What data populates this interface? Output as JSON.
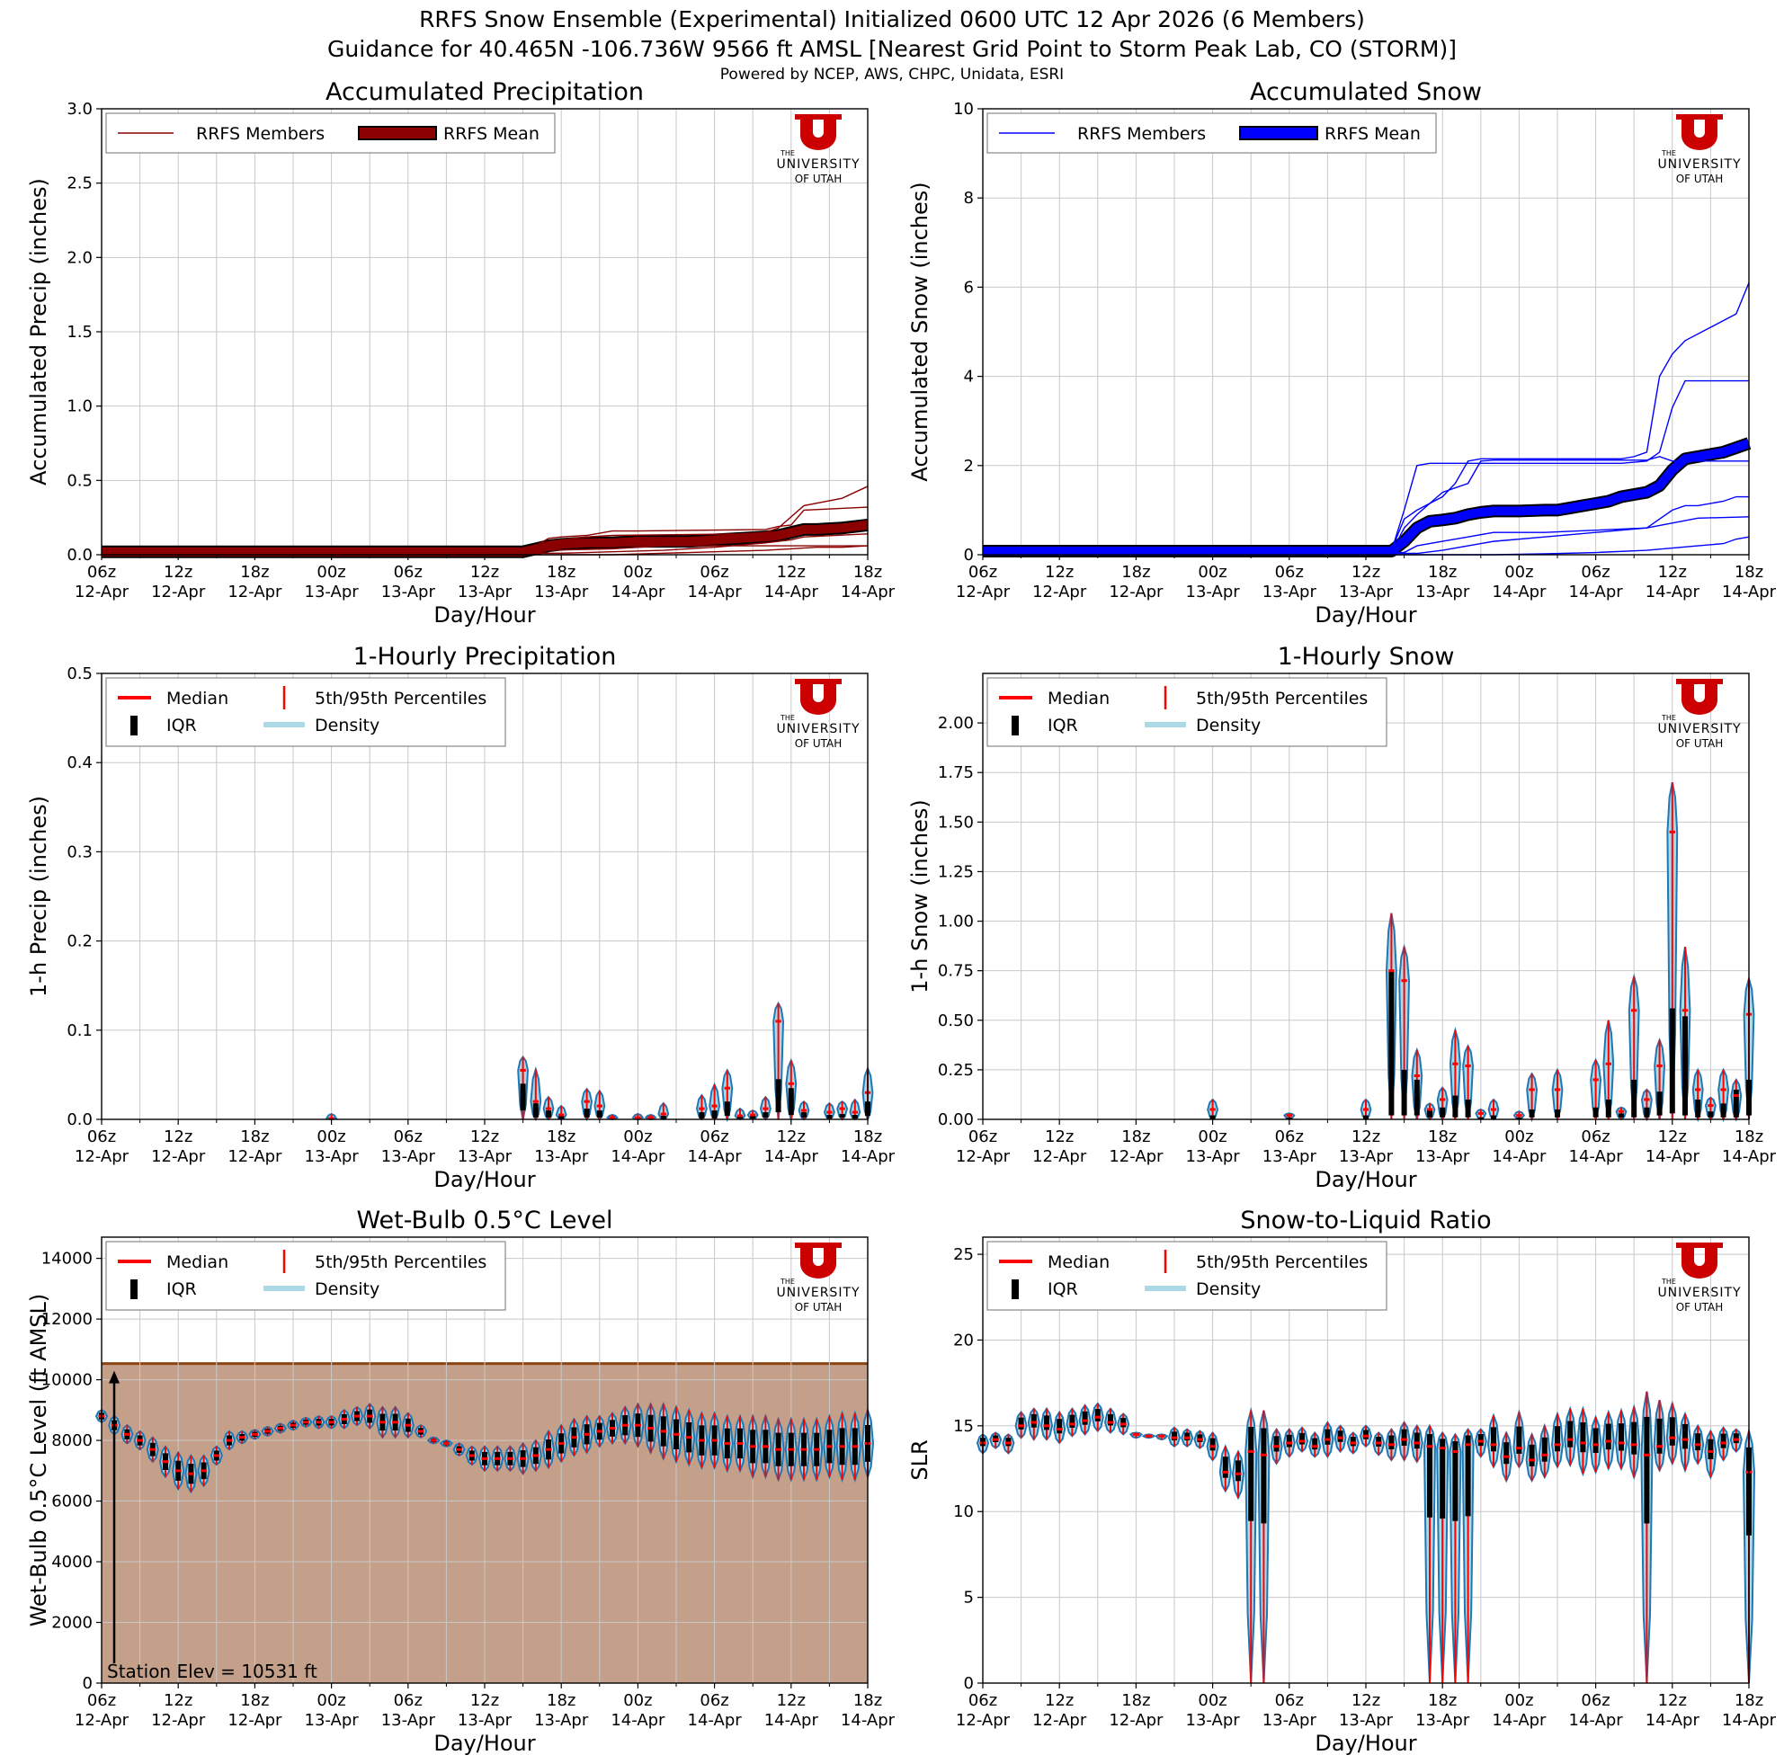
{
  "header": {
    "title1": "RRFS Snow Ensemble (Experimental) Initialized 0600 UTC 12 Apr 2026 (6 Members)",
    "title2": "Guidance for 40.465N -106.736W 9566 ft AMSL [Nearest Grid Point to Storm Peak Lab, CO (STORM)]",
    "subtitle": "Powered by NCEP, AWS, CHPC, Unidata, ESRI"
  },
  "logo": {
    "line1": "THE",
    "line2": "UNIVERSITY",
    "line3": "OF UTAH"
  },
  "colors": {
    "precip": "#8b0000",
    "snow": "#0000ff",
    "median": "#ff0000",
    "density_fill": "#add8e6",
    "density_edge": "#1f77b4",
    "terrain": "#c4a08a",
    "terrain_edge": "#8b4513",
    "grid": "#c8c8c8"
  },
  "x_axis": {
    "hours_total": 60,
    "label": "Day/Hour",
    "ticks": [
      {
        "h": 0,
        "hour": "06z",
        "day": "12-Apr"
      },
      {
        "h": 6,
        "hour": "12z",
        "day": "12-Apr"
      },
      {
        "h": 12,
        "hour": "18z",
        "day": "12-Apr"
      },
      {
        "h": 18,
        "hour": "00z",
        "day": "13-Apr"
      },
      {
        "h": 24,
        "hour": "06z",
        "day": "13-Apr"
      },
      {
        "h": 30,
        "hour": "12z",
        "day": "13-Apr"
      },
      {
        "h": 36,
        "hour": "18z",
        "day": "13-Apr"
      },
      {
        "h": 42,
        "hour": "00z",
        "day": "14-Apr"
      },
      {
        "h": 48,
        "hour": "06z",
        "day": "14-Apr"
      },
      {
        "h": 54,
        "hour": "12z",
        "day": "14-Apr"
      },
      {
        "h": 60,
        "hour": "18z",
        "day": "14-Apr"
      }
    ]
  },
  "chart_data": [
    {
      "id": "acc_precip",
      "type": "line",
      "title": "Accumulated Precipitation",
      "xlabel": "Day/Hour",
      "ylabel": "Accumulated Precip (inches)",
      "ylim": [
        0,
        3.0
      ],
      "yticks": [
        "0.0",
        "0.5",
        "1.0",
        "1.5",
        "2.0",
        "2.5",
        "3.0"
      ],
      "legend": [
        "RRFS Members",
        "RRFS Mean"
      ],
      "members": [
        {
          "x": [
            0,
            32,
            33,
            34,
            60
          ],
          "y": [
            0.02,
            0.02,
            0.03,
            0.06,
            0.06
          ]
        },
        {
          "x": [
            0,
            32,
            34,
            35,
            36,
            38,
            40,
            42,
            52,
            53,
            54,
            55,
            60
          ],
          "y": [
            0.02,
            0.02,
            0.06,
            0.11,
            0.12,
            0.13,
            0.16,
            0.16,
            0.17,
            0.19,
            0.2,
            0.3,
            0.32
          ]
        },
        {
          "x": [
            0,
            33,
            34,
            35,
            38,
            40,
            50,
            52,
            53,
            55,
            58,
            60
          ],
          "y": [
            0.01,
            0.02,
            0.04,
            0.09,
            0.12,
            0.13,
            0.14,
            0.15,
            0.18,
            0.33,
            0.38,
            0.46
          ]
        },
        {
          "x": [
            0,
            34,
            35,
            40,
            44,
            48,
            50,
            53,
            55,
            58,
            60
          ],
          "y": [
            0.01,
            0.01,
            0.03,
            0.04,
            0.06,
            0.08,
            0.1,
            0.12,
            0.15,
            0.2,
            0.23
          ]
        },
        {
          "x": [
            0,
            36,
            40,
            44,
            48,
            52,
            54,
            55,
            60
          ],
          "y": [
            0.01,
            0.01,
            0.02,
            0.03,
            0.05,
            0.08,
            0.1,
            0.12,
            0.14
          ]
        },
        {
          "x": [
            0,
            40,
            44,
            48,
            52,
            54,
            56,
            58,
            60
          ],
          "y": [
            0.0,
            0.0,
            0.01,
            0.02,
            0.03,
            0.04,
            0.05,
            0.05,
            0.06
          ]
        }
      ],
      "mean": {
        "x": [
          0,
          32,
          33,
          34,
          35,
          36,
          38,
          40,
          42,
          44,
          46,
          48,
          50,
          52,
          53,
          54,
          55,
          56,
          58,
          60
        ],
        "y": [
          0.02,
          0.02,
          0.02,
          0.04,
          0.06,
          0.07,
          0.08,
          0.08,
          0.09,
          0.09,
          0.09,
          0.1,
          0.11,
          0.12,
          0.13,
          0.15,
          0.17,
          0.17,
          0.18,
          0.2
        ]
      }
    },
    {
      "id": "acc_snow",
      "type": "line",
      "title": "Accumulated Snow",
      "xlabel": "Day/Hour",
      "ylabel": "Accumulated Snow (inches)",
      "ylim": [
        0,
        10
      ],
      "yticks": [
        "0",
        "2",
        "4",
        "6",
        "8",
        "10"
      ],
      "legend": [
        "RRFS Members",
        "RRFS Mean"
      ],
      "members": [
        {
          "x": [
            0,
            32,
            33,
            34,
            36,
            37,
            38,
            39,
            40,
            50,
            51,
            52,
            53,
            54,
            55,
            57,
            59,
            60
          ],
          "y": [
            0.1,
            0.1,
            0.8,
            1.0,
            1.3,
            1.6,
            2.1,
            2.15,
            2.15,
            2.15,
            2.2,
            2.3,
            4.0,
            4.5,
            4.8,
            5.1,
            5.4,
            6.1
          ]
        },
        {
          "x": [
            0,
            32,
            33,
            34,
            35,
            36,
            50,
            52,
            53,
            54,
            55,
            60
          ],
          "y": [
            0.08,
            0.08,
            1.0,
            2.0,
            2.05,
            2.05,
            2.05,
            2.1,
            2.3,
            3.3,
            3.9,
            3.9
          ]
        },
        {
          "x": [
            0,
            32,
            33,
            34,
            36,
            38,
            39,
            40,
            52,
            53,
            54,
            60
          ],
          "y": [
            0.05,
            0.05,
            0.6,
            0.9,
            1.4,
            1.6,
            2.1,
            2.12,
            2.12,
            2.2,
            2.1,
            2.1
          ]
        },
        {
          "x": [
            0,
            33,
            34,
            36,
            38,
            40,
            44,
            48,
            52,
            54,
            55,
            56,
            58,
            59,
            60
          ],
          "y": [
            0.05,
            0.05,
            0.2,
            0.3,
            0.4,
            0.5,
            0.5,
            0.55,
            0.6,
            1.0,
            1.1,
            1.1,
            1.2,
            1.3,
            1.3
          ]
        },
        {
          "x": [
            0,
            34,
            36,
            38,
            40,
            44,
            48,
            52,
            56,
            60
          ],
          "y": [
            0.03,
            0.03,
            0.1,
            0.2,
            0.3,
            0.4,
            0.5,
            0.6,
            0.82,
            0.85
          ]
        },
        {
          "x": [
            0,
            40,
            44,
            48,
            52,
            54,
            56,
            58,
            59,
            60
          ],
          "y": [
            0.0,
            0.0,
            0.02,
            0.05,
            0.1,
            0.15,
            0.2,
            0.25,
            0.35,
            0.4
          ]
        }
      ],
      "mean": {
        "x": [
          0,
          32,
          33,
          34,
          35,
          36,
          37,
          38,
          39,
          40,
          42,
          44,
          45,
          46,
          47,
          48,
          49,
          50,
          51,
          52,
          53,
          54,
          55,
          56,
          57,
          58,
          59,
          60
        ],
        "y": [
          0.08,
          0.08,
          0.3,
          0.6,
          0.75,
          0.78,
          0.82,
          0.9,
          0.95,
          0.98,
          0.98,
          1.0,
          1.0,
          1.05,
          1.1,
          1.15,
          1.2,
          1.3,
          1.35,
          1.4,
          1.55,
          1.9,
          2.15,
          2.2,
          2.25,
          2.3,
          2.4,
          2.5
        ]
      }
    },
    {
      "id": "hourly_precip",
      "type": "violin",
      "title": "1-Hourly Precipitation",
      "xlabel": "Day/Hour",
      "ylabel": "1-h Precip (inches)",
      "ylim": [
        0,
        0.5
      ],
      "yticks": [
        "0.0",
        "0.1",
        "0.2",
        "0.3",
        "0.4",
        "0.5"
      ],
      "legend": [
        "Median",
        "5th/95th Percentiles",
        "IQR",
        "Density"
      ],
      "hours": [
        18,
        33,
        34,
        35,
        36,
        38,
        39,
        40,
        42,
        43,
        44,
        47,
        48,
        49,
        50,
        51,
        52,
        53,
        54,
        55,
        57,
        58,
        59,
        60
      ],
      "max": [
        0.006,
        0.07,
        0.056,
        0.025,
        0.015,
        0.034,
        0.032,
        0.005,
        0.006,
        0.005,
        0.018,
        0.027,
        0.039,
        0.055,
        0.012,
        0.01,
        0.025,
        0.13,
        0.066,
        0.02,
        0.018,
        0.02,
        0.022,
        0.057
      ],
      "median": [
        0.001,
        0.055,
        0.02,
        0.012,
        0.005,
        0.02,
        0.015,
        0.002,
        0.002,
        0.002,
        0.006,
        0.012,
        0.015,
        0.035,
        0.004,
        0.005,
        0.012,
        0.11,
        0.04,
        0.01,
        0.008,
        0.012,
        0.008,
        0.03
      ],
      "q75": [
        0.002,
        0.04,
        0.018,
        0.01,
        0.004,
        0.012,
        0.01,
        0.002,
        0.002,
        0.002,
        0.004,
        0.008,
        0.01,
        0.02,
        0.004,
        0.004,
        0.008,
        0.045,
        0.035,
        0.008,
        0.005,
        0.006,
        0.005,
        0.02
      ],
      "q25": [
        0,
        0.01,
        0.002,
        0.002,
        0,
        0.002,
        0.002,
        0,
        0,
        0,
        0,
        0.001,
        0.001,
        0.004,
        0.001,
        0.001,
        0.002,
        0.008,
        0.005,
        0.002,
        0.001,
        0.002,
        0.001,
        0.004
      ]
    },
    {
      "id": "hourly_snow",
      "type": "violin",
      "title": "1-Hourly Snow",
      "xlabel": "Day/Hour",
      "ylabel": "1-h Snow (inches)",
      "ylim": [
        0,
        2.25
      ],
      "yticks": [
        "0.00",
        "0.25",
        "0.50",
        "0.75",
        "1.00",
        "1.25",
        "1.50",
        "1.75",
        "2.00"
      ],
      "legend": [
        "Median",
        "5th/95th Percentiles",
        "IQR",
        "Density"
      ],
      "hours": [
        18,
        24,
        30,
        32,
        33,
        34,
        35,
        36,
        37,
        38,
        39,
        40,
        42,
        43,
        45,
        48,
        49,
        50,
        51,
        52,
        53,
        54,
        55,
        56,
        57,
        58,
        59,
        60
      ],
      "max": [
        0.1,
        0.03,
        0.1,
        1.04,
        0.87,
        0.35,
        0.08,
        0.16,
        0.45,
        0.37,
        0.05,
        0.1,
        0.04,
        0.23,
        0.25,
        0.3,
        0.5,
        0.06,
        0.72,
        0.15,
        0.4,
        1.7,
        0.87,
        0.25,
        0.11,
        0.25,
        0.2,
        0.71
      ],
      "median": [
        0.05,
        0.02,
        0.05,
        0.75,
        0.7,
        0.22,
        0.05,
        0.1,
        0.28,
        0.27,
        0.03,
        0.05,
        0.02,
        0.15,
        0.15,
        0.2,
        0.28,
        0.04,
        0.55,
        0.1,
        0.27,
        1.45,
        0.55,
        0.15,
        0.07,
        0.15,
        0.12,
        0.53
      ],
      "q75": [
        0.02,
        0.01,
        0.02,
        0.75,
        0.25,
        0.2,
        0.05,
        0.06,
        0.12,
        0.1,
        0.01,
        0.02,
        0.01,
        0.05,
        0.05,
        0.06,
        0.1,
        0.03,
        0.2,
        0.06,
        0.14,
        0.56,
        0.52,
        0.1,
        0.04,
        0.08,
        0.15,
        0.2
      ],
      "q25": [
        0,
        0,
        0,
        0.02,
        0.02,
        0.02,
        0.01,
        0.01,
        0.01,
        0.01,
        0,
        0,
        0,
        0.01,
        0.01,
        0.01,
        0.01,
        0.01,
        0.01,
        0.01,
        0.02,
        0.03,
        0.02,
        0.01,
        0.01,
        0.01,
        0.01,
        0.02
      ]
    },
    {
      "id": "wetbulb",
      "type": "violin",
      "title": "Wet-Bulb 0.5°C Level",
      "xlabel": "Day/Hour",
      "ylabel": "Wet-Bulb 0.5°C Level (ft AMSL)",
      "ylim": [
        0,
        14700
      ],
      "yticks": [
        "0",
        "2000",
        "4000",
        "6000",
        "8000",
        "10000",
        "12000",
        "14000"
      ],
      "legend": [
        "Median",
        "5th/95th Percentiles",
        "IQR",
        "Density"
      ],
      "station_elev": 10531,
      "annotation": "Station Elev = 10531 ft",
      "median": [
        8800,
        8500,
        8200,
        8000,
        7700,
        7300,
        7000,
        6900,
        7000,
        7500,
        8000,
        8100,
        8200,
        8300,
        8400,
        8500,
        8600,
        8600,
        8600,
        8700,
        8800,
        8800,
        8600,
        8600,
        8500,
        8300,
        8000,
        7900,
        7700,
        7500,
        7400,
        7400,
        7400,
        7400,
        7500,
        7700,
        7900,
        8100,
        8200,
        8300,
        8400,
        8500,
        8500,
        8400,
        8300,
        8200,
        8100,
        8000,
        8000,
        7900,
        7900,
        7800,
        7800,
        7700,
        7700,
        7700,
        7700,
        7800,
        7800,
        7800,
        7900
      ],
      "spread": [
        200,
        300,
        300,
        300,
        400,
        500,
        600,
        600,
        500,
        300,
        300,
        200,
        150,
        150,
        150,
        150,
        150,
        200,
        200,
        300,
        300,
        400,
        500,
        500,
        400,
        200,
        100,
        100,
        200,
        300,
        400,
        400,
        400,
        500,
        500,
        600,
        600,
        600,
        600,
        500,
        500,
        600,
        700,
        800,
        900,
        900,
        900,
        900,
        900,
        900,
        900,
        1000,
        1000,
        1000,
        1000,
        1000,
        1000,
        1000,
        1100,
        1100,
        1100
      ]
    },
    {
      "id": "slr",
      "type": "violin",
      "title": "Snow-to-Liquid Ratio",
      "xlabel": "Day/Hour",
      "ylabel": "SLR",
      "ylim": [
        0,
        26
      ],
      "yticks": [
        "0",
        "5",
        "10",
        "15",
        "20",
        "25"
      ],
      "legend": [
        "Median",
        "5th/95th Percentiles",
        "IQR",
        "Density"
      ],
      "median": [
        14.0,
        14.2,
        14.0,
        15.0,
        15.2,
        15.0,
        14.8,
        15.1,
        15.3,
        15.5,
        15.2,
        15.1,
        14.5,
        14.4,
        14.4,
        14.3,
        14.3,
        14.2,
        13.8,
        12.3,
        12.2,
        13.5,
        13.3,
        13.8,
        14.0,
        14.1,
        13.8,
        14.2,
        14.3,
        14.0,
        14.4,
        14.0,
        13.9,
        14.2,
        14.0,
        13.8,
        13.7,
        13.5,
        13.9,
        14.1,
        13.9,
        13.2,
        13.7,
        13.0,
        13.3,
        13.9,
        14.2,
        14.0,
        13.9,
        14.1,
        14.0,
        13.9,
        13.3,
        13.8,
        14.3,
        14.2,
        13.9,
        13.5,
        14.0,
        14.2,
        12.3
      ],
      "p95": [
        14.5,
        14.6,
        14.5,
        15.8,
        16.0,
        16.0,
        15.8,
        16.0,
        16.2,
        16.3,
        16.0,
        15.7,
        14.6,
        14.5,
        14.5,
        14.9,
        14.8,
        14.7,
        14.6,
        13.8,
        13.5,
        15.9,
        15.9,
        14.8,
        14.8,
        14.9,
        14.6,
        15.2,
        15.0,
        14.6,
        15.0,
        14.6,
        14.8,
        15.2,
        15.0,
        15.0,
        14.6,
        14.5,
        14.8,
        14.8,
        15.6,
        14.6,
        15.8,
        14.5,
        15.0,
        15.7,
        16.0,
        16.0,
        15.5,
        15.8,
        15.9,
        16.1,
        17.0,
        16.5,
        16.3,
        15.7,
        15.0,
        14.7,
        14.9,
        14.8,
        14.7
      ],
      "p05": [
        13.4,
        13.7,
        13.4,
        14.3,
        14.2,
        14.2,
        14.0,
        14.4,
        14.5,
        14.7,
        14.6,
        14.5,
        14.3,
        14.3,
        14.2,
        13.8,
        13.8,
        13.7,
        13.0,
        11.2,
        10.8,
        0.0,
        0.0,
        12.8,
        13.2,
        13.5,
        13.2,
        13.2,
        13.5,
        13.4,
        13.8,
        13.3,
        13.0,
        13.0,
        12.9,
        0.0,
        0.0,
        0.0,
        0.0,
        13.2,
        12.6,
        11.8,
        12.6,
        11.8,
        12.0,
        12.6,
        12.7,
        12.2,
        12.3,
        12.5,
        12.5,
        12.0,
        0.0,
        12.4,
        12.8,
        12.4,
        12.8,
        12.0,
        13.0,
        13.5,
        0.0
      ]
    }
  ]
}
